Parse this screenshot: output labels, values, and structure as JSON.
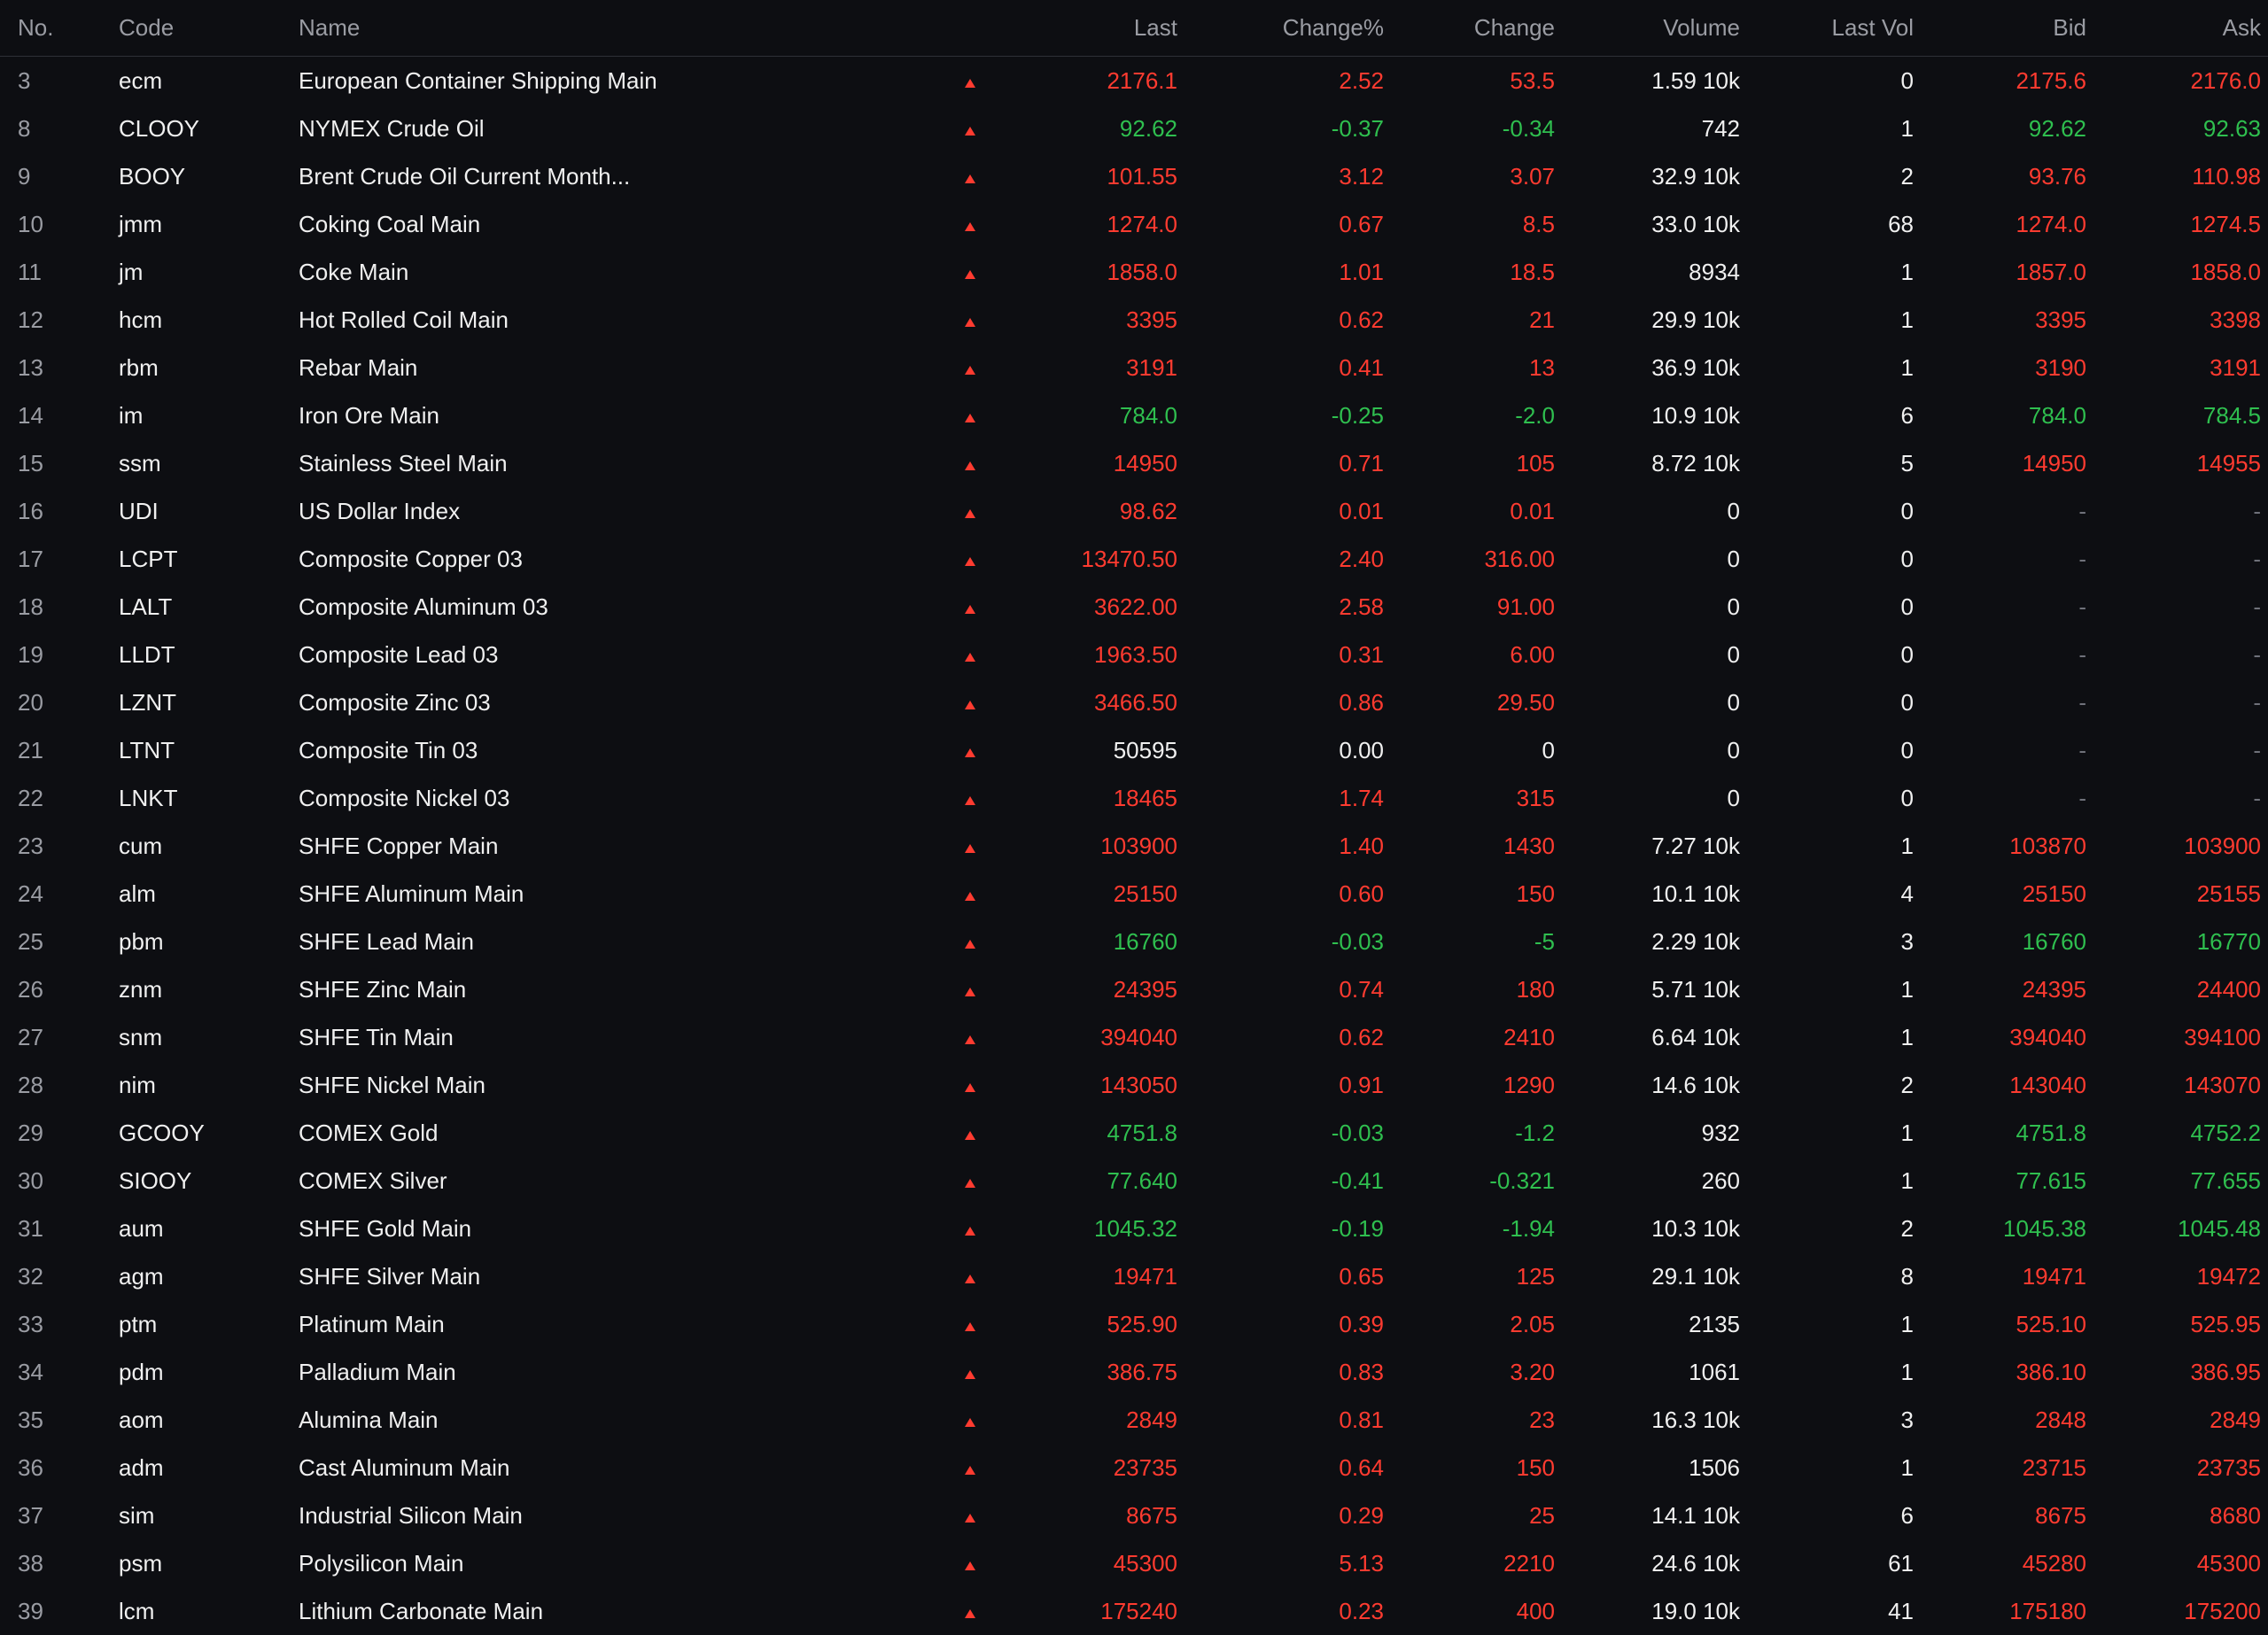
{
  "headers": {
    "no": "No.",
    "code": "Code",
    "name": "Name",
    "last": "Last",
    "change_pct": "Change%",
    "change": "Change",
    "volume": "Volume",
    "last_vol": "Last Vol",
    "bid": "Bid",
    "ask": "Ask"
  },
  "colors": {
    "up": "#ff3b30",
    "down": "#2fbf4f",
    "flat": "#f0f0f0",
    "background": "#0d0e12"
  },
  "rows": [
    {
      "no": "3",
      "code": "ecm",
      "name": "European Container Shipping Main",
      "last": "2176.1",
      "pct": "2.52",
      "chg": "53.5",
      "vol": "1.59 10k",
      "lastvol": "0",
      "bid": "2175.6",
      "ask": "2176.0",
      "tone": "up"
    },
    {
      "no": "8",
      "code": "CLOOY",
      "name": "NYMEX Crude Oil",
      "last": "92.62",
      "pct": "-0.37",
      "chg": "-0.34",
      "vol": "742",
      "lastvol": "1",
      "bid": "92.62",
      "ask": "92.63",
      "tone": "down"
    },
    {
      "no": "9",
      "code": "BOOY",
      "name": "Brent Crude Oil Current Month...",
      "last": "101.55",
      "pct": "3.12",
      "chg": "3.07",
      "vol": "32.9 10k",
      "lastvol": "2",
      "bid": "93.76",
      "ask": "110.98",
      "tone": "up"
    },
    {
      "no": "10",
      "code": "jmm",
      "name": "Coking Coal Main",
      "last": "1274.0",
      "pct": "0.67",
      "chg": "8.5",
      "vol": "33.0 10k",
      "lastvol": "68",
      "bid": "1274.0",
      "ask": "1274.5",
      "tone": "up"
    },
    {
      "no": "11",
      "code": "jm",
      "name": "Coke Main",
      "last": "1858.0",
      "pct": "1.01",
      "chg": "18.5",
      "vol": "8934",
      "lastvol": "1",
      "bid": "1857.0",
      "ask": "1858.0",
      "tone": "up"
    },
    {
      "no": "12",
      "code": "hcm",
      "name": "Hot Rolled Coil Main",
      "last": "3395",
      "pct": "0.62",
      "chg": "21",
      "vol": "29.9 10k",
      "lastvol": "1",
      "bid": "3395",
      "ask": "3398",
      "tone": "up"
    },
    {
      "no": "13",
      "code": "rbm",
      "name": "Rebar Main",
      "last": "3191",
      "pct": "0.41",
      "chg": "13",
      "vol": "36.9 10k",
      "lastvol": "1",
      "bid": "3190",
      "ask": "3191",
      "tone": "up"
    },
    {
      "no": "14",
      "code": "im",
      "name": "Iron Ore Main",
      "last": "784.0",
      "pct": "-0.25",
      "chg": "-2.0",
      "vol": "10.9 10k",
      "lastvol": "6",
      "bid": "784.0",
      "ask": "784.5",
      "tone": "down"
    },
    {
      "no": "15",
      "code": "ssm",
      "name": "Stainless Steel Main",
      "last": "14950",
      "pct": "0.71",
      "chg": "105",
      "vol": "8.72 10k",
      "lastvol": "5",
      "bid": "14950",
      "ask": "14955",
      "tone": "up"
    },
    {
      "no": "16",
      "code": "UDI",
      "name": "US Dollar Index",
      "last": "98.62",
      "pct": "0.01",
      "chg": "0.01",
      "vol": "0",
      "lastvol": "0",
      "bid": "-",
      "ask": "-",
      "tone": "up"
    },
    {
      "no": "17",
      "code": "LCPT",
      "name": "Composite Copper 03",
      "last": "13470.50",
      "pct": "2.40",
      "chg": "316.00",
      "vol": "0",
      "lastvol": "0",
      "bid": "-",
      "ask": "-",
      "tone": "up"
    },
    {
      "no": "18",
      "code": "LALT",
      "name": "Composite Aluminum 03",
      "last": "3622.00",
      "pct": "2.58",
      "chg": "91.00",
      "vol": "0",
      "lastvol": "0",
      "bid": "-",
      "ask": "-",
      "tone": "up"
    },
    {
      "no": "19",
      "code": "LLDT",
      "name": "Composite Lead 03",
      "last": "1963.50",
      "pct": "0.31",
      "chg": "6.00",
      "vol": "0",
      "lastvol": "0",
      "bid": "-",
      "ask": "-",
      "tone": "up"
    },
    {
      "no": "20",
      "code": "LZNT",
      "name": "Composite Zinc 03",
      "last": "3466.50",
      "pct": "0.86",
      "chg": "29.50",
      "vol": "0",
      "lastvol": "0",
      "bid": "-",
      "ask": "-",
      "tone": "up"
    },
    {
      "no": "21",
      "code": "LTNT",
      "name": "Composite Tin 03",
      "last": "50595",
      "pct": "0.00",
      "chg": "0",
      "vol": "0",
      "lastvol": "0",
      "bid": "-",
      "ask": "-",
      "tone": "flat"
    },
    {
      "no": "22",
      "code": "LNKT",
      "name": "Composite Nickel 03",
      "last": "18465",
      "pct": "1.74",
      "chg": "315",
      "vol": "0",
      "lastvol": "0",
      "bid": "-",
      "ask": "-",
      "tone": "up"
    },
    {
      "no": "23",
      "code": "cum",
      "name": "SHFE Copper Main",
      "last": "103900",
      "pct": "1.40",
      "chg": "1430",
      "vol": "7.27 10k",
      "lastvol": "1",
      "bid": "103870",
      "ask": "103900",
      "tone": "up"
    },
    {
      "no": "24",
      "code": "alm",
      "name": "SHFE Aluminum Main",
      "last": "25150",
      "pct": "0.60",
      "chg": "150",
      "vol": "10.1 10k",
      "lastvol": "4",
      "bid": "25150",
      "ask": "25155",
      "tone": "up"
    },
    {
      "no": "25",
      "code": "pbm",
      "name": "SHFE Lead Main",
      "last": "16760",
      "pct": "-0.03",
      "chg": "-5",
      "vol": "2.29 10k",
      "lastvol": "3",
      "bid": "16760",
      "ask": "16770",
      "tone": "down"
    },
    {
      "no": "26",
      "code": "znm",
      "name": "SHFE Zinc Main",
      "last": "24395",
      "pct": "0.74",
      "chg": "180",
      "vol": "5.71 10k",
      "lastvol": "1",
      "bid": "24395",
      "ask": "24400",
      "tone": "up"
    },
    {
      "no": "27",
      "code": "snm",
      "name": "SHFE Tin Main",
      "last": "394040",
      "pct": "0.62",
      "chg": "2410",
      "vol": "6.64 10k",
      "lastvol": "1",
      "bid": "394040",
      "ask": "394100",
      "tone": "up"
    },
    {
      "no": "28",
      "code": "nim",
      "name": "SHFE Nickel Main",
      "last": "143050",
      "pct": "0.91",
      "chg": "1290",
      "vol": "14.6 10k",
      "lastvol": "2",
      "bid": "143040",
      "ask": "143070",
      "tone": "up"
    },
    {
      "no": "29",
      "code": "GCOOY",
      "name": "COMEX Gold",
      "last": "4751.8",
      "pct": "-0.03",
      "chg": "-1.2",
      "vol": "932",
      "lastvol": "1",
      "bid": "4751.8",
      "ask": "4752.2",
      "tone": "down"
    },
    {
      "no": "30",
      "code": "SIOOY",
      "name": "COMEX Silver",
      "last": "77.640",
      "pct": "-0.41",
      "chg": "-0.321",
      "vol": "260",
      "lastvol": "1",
      "bid": "77.615",
      "ask": "77.655",
      "tone": "down"
    },
    {
      "no": "31",
      "code": "aum",
      "name": "SHFE Gold Main",
      "last": "1045.32",
      "pct": "-0.19",
      "chg": "-1.94",
      "vol": "10.3 10k",
      "lastvol": "2",
      "bid": "1045.38",
      "ask": "1045.48",
      "tone": "down"
    },
    {
      "no": "32",
      "code": "agm",
      "name": "SHFE Silver Main",
      "last": "19471",
      "pct": "0.65",
      "chg": "125",
      "vol": "29.1 10k",
      "lastvol": "8",
      "bid": "19471",
      "ask": "19472",
      "tone": "up"
    },
    {
      "no": "33",
      "code": "ptm",
      "name": "Platinum Main",
      "last": "525.90",
      "pct": "0.39",
      "chg": "2.05",
      "vol": "2135",
      "lastvol": "1",
      "bid": "525.10",
      "ask": "525.95",
      "tone": "up"
    },
    {
      "no": "34",
      "code": "pdm",
      "name": "Palladium Main",
      "last": "386.75",
      "pct": "0.83",
      "chg": "3.20",
      "vol": "1061",
      "lastvol": "1",
      "bid": "386.10",
      "ask": "386.95",
      "tone": "up"
    },
    {
      "no": "35",
      "code": "aom",
      "name": "Alumina Main",
      "last": "2849",
      "pct": "0.81",
      "chg": "23",
      "vol": "16.3 10k",
      "lastvol": "3",
      "bid": "2848",
      "ask": "2849",
      "tone": "up"
    },
    {
      "no": "36",
      "code": "adm",
      "name": "Cast Aluminum Main",
      "last": "23735",
      "pct": "0.64",
      "chg": "150",
      "vol": "1506",
      "lastvol": "1",
      "bid": "23715",
      "ask": "23735",
      "tone": "up"
    },
    {
      "no": "37",
      "code": "sim",
      "name": "Industrial Silicon Main",
      "last": "8675",
      "pct": "0.29",
      "chg": "25",
      "vol": "14.1 10k",
      "lastvol": "6",
      "bid": "8675",
      "ask": "8680",
      "tone": "up"
    },
    {
      "no": "38",
      "code": "psm",
      "name": "Polysilicon Main",
      "last": "45300",
      "pct": "5.13",
      "chg": "2210",
      "vol": "24.6 10k",
      "lastvol": "61",
      "bid": "45280",
      "ask": "45300",
      "tone": "up"
    },
    {
      "no": "39",
      "code": "lcm",
      "name": "Lithium Carbonate Main",
      "last": "175240",
      "pct": "0.23",
      "chg": "400",
      "vol": "19.0 10k",
      "lastvol": "41",
      "bid": "175180",
      "ask": "175200",
      "tone": "up"
    }
  ]
}
